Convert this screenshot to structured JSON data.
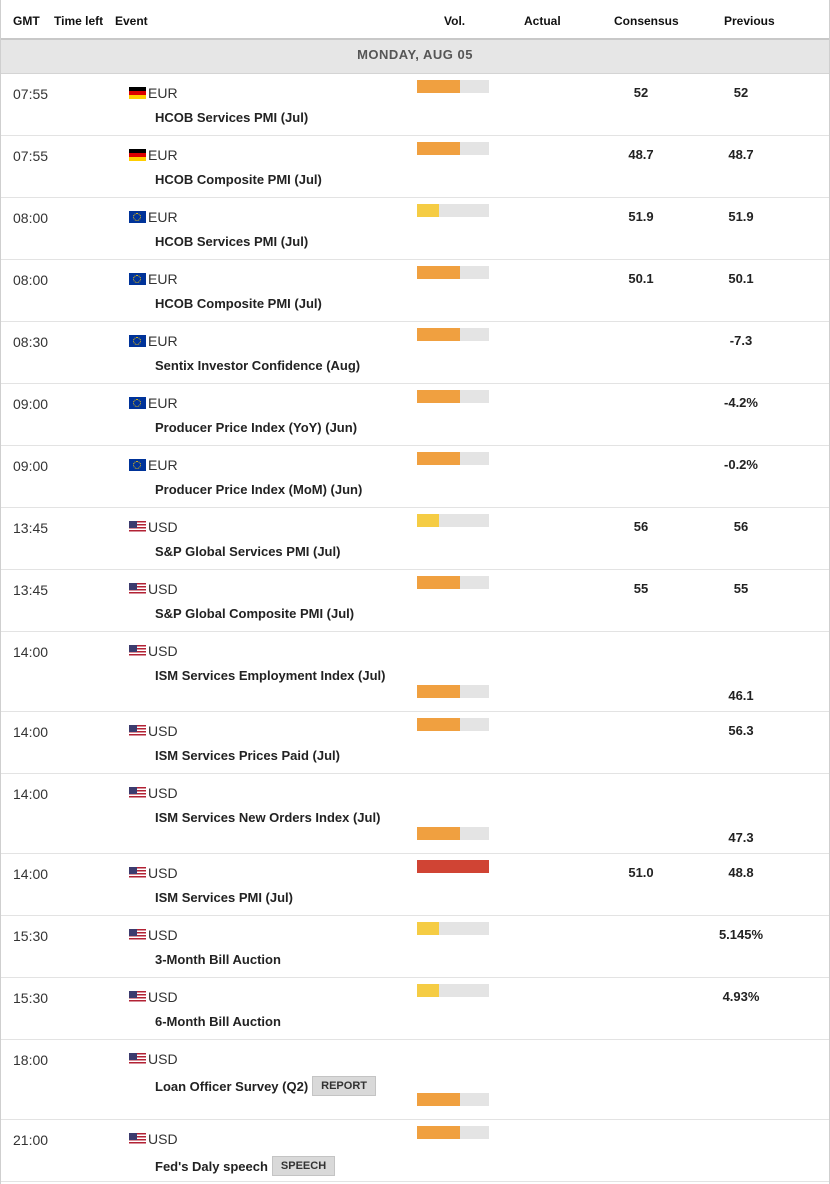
{
  "header": {
    "gmt": "GMT",
    "time_left": "Time left",
    "event": "Event",
    "vol": "Vol.",
    "actual": "Actual",
    "consensus": "Consensus",
    "previous": "Previous"
  },
  "date_label": "MONDAY, AUG 05",
  "colors": {
    "high": "#d04434",
    "medium": "#f0a040",
    "low": "#f5cc44",
    "empty": "#e4e4e4"
  },
  "events": [
    {
      "time": "07:55",
      "flag": "de",
      "currency": "EUR",
      "name": "HCOB Services PMI (Jul)",
      "volatility": "medium",
      "vol_level": 0.6,
      "vol_bottom": false,
      "actual": "",
      "consensus": "52",
      "previous": "52",
      "previous_bottom": false,
      "tag": ""
    },
    {
      "time": "07:55",
      "flag": "de",
      "currency": "EUR",
      "name": "HCOB Composite PMI (Jul)",
      "volatility": "medium",
      "vol_level": 0.6,
      "vol_bottom": false,
      "actual": "",
      "consensus": "48.7",
      "previous": "48.7",
      "previous_bottom": false,
      "tag": ""
    },
    {
      "time": "08:00",
      "flag": "eu",
      "currency": "EUR",
      "name": "HCOB Services PMI (Jul)",
      "volatility": "low",
      "vol_level": 0.3,
      "vol_bottom": false,
      "actual": "",
      "consensus": "51.9",
      "previous": "51.9",
      "previous_bottom": false,
      "tag": ""
    },
    {
      "time": "08:00",
      "flag": "eu",
      "currency": "EUR",
      "name": "HCOB Composite PMI (Jul)",
      "volatility": "medium",
      "vol_level": 0.6,
      "vol_bottom": false,
      "actual": "",
      "consensus": "50.1",
      "previous": "50.1",
      "previous_bottom": false,
      "tag": ""
    },
    {
      "time": "08:30",
      "flag": "eu",
      "currency": "EUR",
      "name": "Sentix Investor Confidence (Aug)",
      "volatility": "medium",
      "vol_level": 0.6,
      "vol_bottom": false,
      "actual": "",
      "consensus": "",
      "previous": "-7.3",
      "previous_bottom": false,
      "tag": ""
    },
    {
      "time": "09:00",
      "flag": "eu",
      "currency": "EUR",
      "name": "Producer Price Index (YoY) (Jun)",
      "volatility": "medium",
      "vol_level": 0.6,
      "vol_bottom": false,
      "actual": "",
      "consensus": "",
      "previous": "-4.2%",
      "previous_bottom": false,
      "tag": ""
    },
    {
      "time": "09:00",
      "flag": "eu",
      "currency": "EUR",
      "name": "Producer Price Index (MoM) (Jun)",
      "volatility": "medium",
      "vol_level": 0.6,
      "vol_bottom": false,
      "actual": "",
      "consensus": "",
      "previous": "-0.2%",
      "previous_bottom": false,
      "tag": ""
    },
    {
      "time": "13:45",
      "flag": "us",
      "currency": "USD",
      "name": "S&P Global Services PMI (Jul)",
      "volatility": "low",
      "vol_level": 0.3,
      "vol_bottom": false,
      "actual": "",
      "consensus": "56",
      "previous": "56",
      "previous_bottom": false,
      "tag": ""
    },
    {
      "time": "13:45",
      "flag": "us",
      "currency": "USD",
      "name": "S&P Global Composite PMI (Jul)",
      "volatility": "medium",
      "vol_level": 0.6,
      "vol_bottom": false,
      "actual": "",
      "consensus": "55",
      "previous": "55",
      "previous_bottom": false,
      "tag": ""
    },
    {
      "time": "14:00",
      "flag": "us",
      "currency": "USD",
      "name": "ISM Services Employment Index (Jul)",
      "volatility": "medium",
      "vol_level": 0.6,
      "vol_bottom": true,
      "actual": "",
      "consensus": "",
      "previous": "46.1",
      "previous_bottom": true,
      "tag": ""
    },
    {
      "time": "14:00",
      "flag": "us",
      "currency": "USD",
      "name": "ISM Services Prices Paid (Jul)",
      "volatility": "medium",
      "vol_level": 0.6,
      "vol_bottom": false,
      "actual": "",
      "consensus": "",
      "previous": "56.3",
      "previous_bottom": false,
      "tag": ""
    },
    {
      "time": "14:00",
      "flag": "us",
      "currency": "USD",
      "name": "ISM Services New Orders Index (Jul)",
      "volatility": "medium",
      "vol_level": 0.6,
      "vol_bottom": true,
      "actual": "",
      "consensus": "",
      "previous": "47.3",
      "previous_bottom": true,
      "tag": ""
    },
    {
      "time": "14:00",
      "flag": "us",
      "currency": "USD",
      "name": "ISM Services PMI (Jul)",
      "volatility": "high",
      "vol_level": 1.0,
      "vol_bottom": false,
      "actual": "",
      "consensus": "51.0",
      "previous": "48.8",
      "previous_bottom": false,
      "tag": ""
    },
    {
      "time": "15:30",
      "flag": "us",
      "currency": "USD",
      "name": "3-Month Bill Auction",
      "volatility": "low",
      "vol_level": 0.3,
      "vol_bottom": false,
      "actual": "",
      "consensus": "",
      "previous": "5.145%",
      "previous_bottom": false,
      "tag": ""
    },
    {
      "time": "15:30",
      "flag": "us",
      "currency": "USD",
      "name": "6-Month Bill Auction",
      "volatility": "low",
      "vol_level": 0.3,
      "vol_bottom": false,
      "actual": "",
      "consensus": "",
      "previous": "4.93%",
      "previous_bottom": false,
      "tag": ""
    },
    {
      "time": "18:00",
      "flag": "us",
      "currency": "USD",
      "name": "Loan Officer Survey (Q2)",
      "volatility": "medium",
      "vol_level": 0.6,
      "vol_bottom": true,
      "actual": "",
      "consensus": "",
      "previous": "",
      "previous_bottom": false,
      "tag": "REPORT"
    },
    {
      "time": "21:00",
      "flag": "us",
      "currency": "USD",
      "name": "Fed's Daly speech",
      "volatility": "medium",
      "vol_level": 0.6,
      "vol_bottom": false,
      "actual": "",
      "consensus": "",
      "previous": "",
      "previous_bottom": false,
      "tag": "SPEECH"
    }
  ]
}
